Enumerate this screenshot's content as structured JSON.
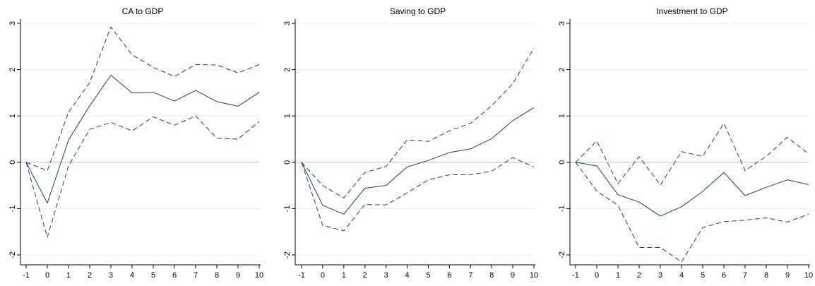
{
  "chart_data": [
    {
      "type": "line",
      "title": "CA to GDP",
      "xlabel": "",
      "ylabel": "",
      "x": [
        -1,
        0,
        1,
        2,
        3,
        4,
        5,
        6,
        7,
        8,
        9,
        10
      ],
      "xticks": [
        "-1",
        "0",
        "1",
        "2",
        "3",
        "4",
        "5",
        "6",
        "7",
        "8",
        "9",
        "10"
      ],
      "yticks": [
        "-2",
        "-1",
        "0",
        "1",
        "2",
        "3"
      ],
      "ylim": [
        -2,
        3
      ],
      "xlim": [
        -1,
        10
      ],
      "grid": "horizontal",
      "series": [
        {
          "style": "solid",
          "values": [
            0,
            -0.88,
            0.48,
            1.22,
            1.88,
            1.5,
            1.51,
            1.32,
            1.55,
            1.31,
            1.21,
            1.51
          ]
        },
        {
          "style": "dashed",
          "values": [
            0,
            -0.18,
            1.08,
            1.72,
            2.92,
            2.32,
            2.05,
            1.85,
            2.11,
            2.1,
            1.93,
            2.11
          ]
        },
        {
          "style": "dashed",
          "values": [
            0,
            -1.62,
            -0.08,
            0.71,
            0.86,
            0.68,
            0.98,
            0.8,
            1.0,
            0.52,
            0.5,
            0.88
          ]
        }
      ]
    },
    {
      "type": "line",
      "title": "Saving to GDP",
      "xlabel": "",
      "ylabel": "",
      "x": [
        -1,
        0,
        1,
        2,
        3,
        4,
        5,
        6,
        7,
        8,
        9,
        10
      ],
      "xticks": [
        "-1",
        "0",
        "1",
        "2",
        "3",
        "4",
        "5",
        "6",
        "7",
        "8",
        "9",
        "10"
      ],
      "yticks": [
        "-2",
        "-1",
        "0",
        "1",
        "2",
        "3"
      ],
      "ylim": [
        -2,
        3
      ],
      "xlim": [
        -1,
        10
      ],
      "grid": "horizontal",
      "series": [
        {
          "style": "solid",
          "values": [
            0,
            -0.93,
            -1.12,
            -0.56,
            -0.5,
            -0.1,
            0.04,
            0.21,
            0.29,
            0.51,
            0.9,
            1.18
          ]
        },
        {
          "style": "dashed",
          "values": [
            0,
            -0.5,
            -0.77,
            -0.22,
            -0.09,
            0.48,
            0.45,
            0.68,
            0.84,
            1.22,
            1.7,
            2.46
          ]
        },
        {
          "style": "dashed",
          "values": [
            0,
            -1.36,
            -1.48,
            -0.91,
            -0.92,
            -0.66,
            -0.38,
            -0.27,
            -0.27,
            -0.19,
            0.1,
            -0.1
          ]
        }
      ]
    },
    {
      "type": "line",
      "title": "Investment to GDP",
      "xlabel": "",
      "ylabel": "",
      "x": [
        -1,
        0,
        1,
        2,
        3,
        4,
        5,
        6,
        7,
        8,
        9,
        10
      ],
      "xticks": [
        "-1",
        "0",
        "1",
        "2",
        "3",
        "4",
        "5",
        "6",
        "7",
        "8",
        "9",
        "10"
      ],
      "yticks": [
        "-2",
        "-1",
        "0",
        "1",
        "2",
        "3"
      ],
      "ylim": [
        -2,
        3
      ],
      "xlim": [
        -1,
        10
      ],
      "grid": "horizontal",
      "series": [
        {
          "style": "solid",
          "values": [
            0,
            -0.08,
            -0.7,
            -0.86,
            -1.16,
            -0.96,
            -0.63,
            -0.22,
            -0.72,
            -0.54,
            -0.38,
            -0.48
          ]
        },
        {
          "style": "dashed",
          "values": [
            0,
            0.46,
            -0.46,
            0.12,
            -0.49,
            0.23,
            0.13,
            0.84,
            -0.18,
            0.13,
            0.54,
            0.18
          ]
        },
        {
          "style": "dashed",
          "values": [
            0,
            -0.62,
            -0.93,
            -1.84,
            -1.84,
            -2.15,
            -1.41,
            -1.28,
            -1.25,
            -1.2,
            -1.29,
            -1.12
          ]
        }
      ]
    }
  ],
  "colors": {
    "line": "#1f3f5f",
    "grid": "#ececec",
    "zero_line": "#b4c4d0",
    "axis": "#000000",
    "background": "#ffffff"
  }
}
